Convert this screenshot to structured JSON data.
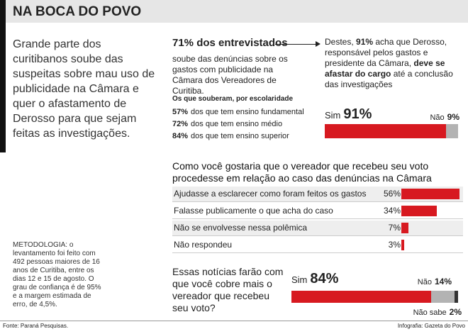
{
  "header": {
    "title": "NA BOCA DO POVO"
  },
  "intro": "Grande parte dos curitibanos soube das suspeitas sobre mau uso de publicidade na Câmara e quer o afastamento de Derosso para que sejam feitas as investigações.",
  "knew": {
    "headline": "71% dos entrevistados",
    "text": "soube das denúncias sobre os gastos com publicidade na Câmara dos Vereadores de Curitiba.",
    "subtitle": "Os que souberam, por escolaridade",
    "rows": [
      {
        "share": "57%",
        "group": "dos que tem ensino fundamental"
      },
      {
        "share": "72%",
        "group": "dos que tem ensino médio"
      },
      {
        "share": "84%",
        "group": "dos que tem ensino superior"
      }
    ]
  },
  "decision": {
    "segments": [
      {
        "text": "Destes, ",
        "bold": false
      },
      {
        "text": "91%",
        "bold": true
      },
      {
        "text": " acha que Derosso, responsável pelos gastos e presidente da Câmara, ",
        "bold": false
      },
      {
        "text": "deve se afastar do cargo",
        "bold": true
      },
      {
        "text": " até a conclusão das investigações",
        "bold": false
      }
    ],
    "chart": {
      "type": "stacked-bar",
      "series": [
        {
          "name": "Sim",
          "color": "#d71920",
          "values": [
            91
          ],
          "value_labels": [
            "91%"
          ]
        },
        {
          "name": "Não",
          "color": "#b3b3b3",
          "values": [
            9
          ],
          "value_labels": [
            "9%"
          ]
        }
      ]
    }
  },
  "question": {
    "title": "Como você gostaria que o vereador que recebeu seu voto procedesse em relação ao caso das denúncias na Câmara Municipal?",
    "chart": {
      "type": "bar",
      "color": "#d71920",
      "categories": [
        "Ajudasse a esclarecer como foram feitos os gastos",
        "Falasse publicamente o que acha do caso",
        "Não se envolvesse nessa polêmica",
        "Não respondeu"
      ],
      "values": [
        56,
        34,
        7,
        3
      ],
      "value_labels": [
        "56%",
        "34%",
        "7%",
        "3%"
      ]
    }
  },
  "news": {
    "title": "Essas notícias farão com que você cobre mais o vereador que recebeu seu voto?",
    "chart": {
      "type": "stacked-bar",
      "series": [
        {
          "name": "Sim",
          "color": "#d71920",
          "values": [
            84
          ],
          "value_labels": [
            "84%"
          ]
        },
        {
          "name": "Não",
          "color": "#b3b3b3",
          "values": [
            14
          ],
          "value_labels": [
            "14%"
          ]
        },
        {
          "name": "Não sabe",
          "color": "#333333",
          "values": [
            2
          ],
          "value_labels": [
            "2%"
          ]
        }
      ]
    }
  },
  "methodology": "METODOLOGIA: o levantamento foi feito com 492 pessoas maiores de 16 anos de Curitiba, entre os dias 12 e 15 de agosto. O grau de confiança é de 95% e a margem estimada de erro, de 4,5%.",
  "source": "Fonte: Paraná Pesquisas.",
  "credit": "Infografia: Gazeta do Povo"
}
